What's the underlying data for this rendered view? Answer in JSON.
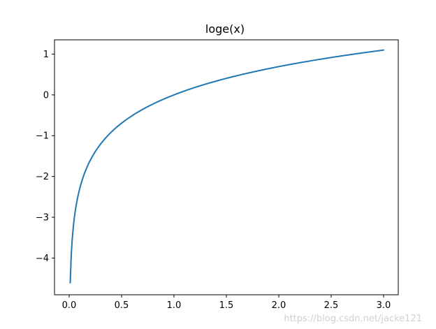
{
  "chart_data": {
    "type": "line",
    "title": "loge(x)",
    "xlabel": "",
    "ylabel": "",
    "xlim": [
      -0.14,
      3.14
    ],
    "ylim": [
      -4.9,
      1.35
    ],
    "xticks": [
      0.0,
      0.5,
      1.0,
      1.5,
      2.0,
      2.5,
      3.0
    ],
    "xtick_labels": [
      "0.0",
      "0.5",
      "1.0",
      "1.5",
      "2.0",
      "2.5",
      "3.0"
    ],
    "yticks": [
      1,
      0,
      -1,
      -2,
      -3,
      -4
    ],
    "ytick_labels": [
      "1",
      "0",
      "−1",
      "−2",
      "−3",
      "−4"
    ],
    "grid": false,
    "series": [
      {
        "color": "#1f77b4",
        "function": "ln(x)",
        "x_range": [
          0.01,
          3.0
        ],
        "points": [
          [
            0.01,
            -4.61
          ],
          [
            0.02,
            -3.91
          ],
          [
            0.05,
            -3.0
          ],
          [
            0.1,
            -2.3
          ],
          [
            0.2,
            -1.61
          ],
          [
            0.3,
            -1.2
          ],
          [
            0.5,
            -0.69
          ],
          [
            0.75,
            -0.29
          ],
          [
            1.0,
            0.0
          ],
          [
            1.5,
            0.41
          ],
          [
            2.0,
            0.69
          ],
          [
            2.5,
            0.92
          ],
          [
            3.0,
            1.1
          ]
        ]
      }
    ]
  },
  "watermark": "https://blog.csdn.net/jacke121"
}
